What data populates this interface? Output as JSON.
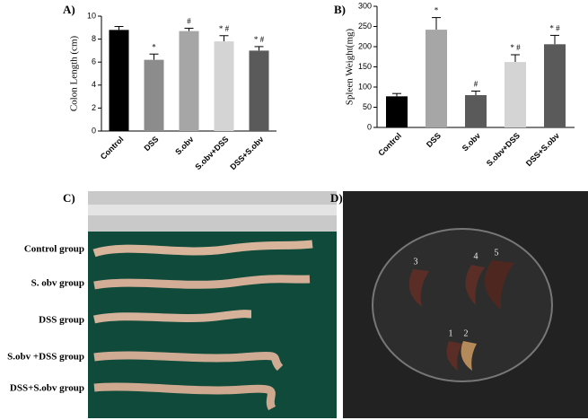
{
  "chart_data": [
    {
      "type": "bar",
      "panel": "A)",
      "y_label": "Colon Length (cm)",
      "categories": [
        "Control",
        "DSS",
        "S.obv",
        "S.obv+DSS",
        "DSS+S.obv"
      ],
      "values": [
        8.8,
        6.2,
        8.7,
        7.8,
        7.0
      ],
      "errors": [
        0.3,
        0.5,
        0.25,
        0.5,
        0.35
      ],
      "annotations": [
        null,
        "*",
        "#",
        "* #",
        "* #"
      ],
      "colors": [
        "#000000",
        "#8c8c8c",
        "#a6a6a6",
        "#d4d4d4",
        "#5a5a5a"
      ],
      "ylim": [
        0,
        10
      ],
      "yticks": [
        0,
        2,
        4,
        6,
        8,
        10
      ]
    },
    {
      "type": "bar",
      "panel": "B)",
      "y_label": "Spleen Weight(mg)",
      "categories": [
        "Control",
        "DSS",
        "S.obv",
        "S.obv+DSS",
        "DSS+S.obv"
      ],
      "values": [
        77,
        242,
        80,
        162,
        206
      ],
      "errors": [
        7,
        30,
        10,
        18,
        22
      ],
      "annotations": [
        null,
        "*",
        "#",
        "* #",
        "* #"
      ],
      "colors": [
        "#000000",
        "#a6a6a6",
        "#5a5a5a",
        "#d4d4d4",
        "#5a5a5a"
      ],
      "ylim": [
        0,
        300
      ],
      "yticks": [
        0,
        50,
        100,
        150,
        200,
        250,
        300
      ]
    }
  ],
  "photos": {
    "colon": {
      "panel": "C)",
      "groups": [
        "Control group",
        "S. obv group",
        "DSS group",
        "S.obv +DSS group",
        "DSS+S.obv group"
      ]
    },
    "spleen": {
      "panel": "D)",
      "numbers": [
        "1",
        "2",
        "3",
        "4",
        "5"
      ]
    }
  }
}
